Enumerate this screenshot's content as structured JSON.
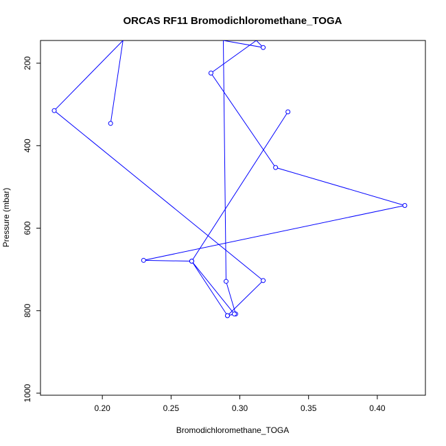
{
  "chart_data": {
    "type": "line",
    "title": "ORCAS RF11 Bromodichloromethane_TOGA",
    "xlabel": "Bromodichloromethane_TOGA",
    "ylabel": "Pressure (mbar)",
    "xlim": [
      0.155,
      0.435
    ],
    "ylim": [
      1005,
      145
    ],
    "y_reversed": true,
    "x_ticks": [
      0.2,
      0.25,
      0.3,
      0.35,
      0.4
    ],
    "x_tick_labels": [
      "0.20",
      "0.25",
      "0.30",
      "0.35",
      "0.40"
    ],
    "y_ticks": [
      200,
      400,
      600,
      800,
      1000
    ],
    "y_tick_labels": [
      "200",
      "400",
      "600",
      "800",
      "1000"
    ],
    "grid": false,
    "marker": "open-circle",
    "color": "#0000ff",
    "series": [
      {
        "x": [
          0.206,
          0.215,
          0.165,
          0.317,
          0.291,
          0.297,
          0.29,
          0.288,
          0.317,
          0.312,
          0.279,
          0.326,
          0.42,
          0.23,
          0.265,
          0.291,
          0.296,
          0.265,
          0.335
        ],
        "y": [
          346,
          145,
          315,
          727,
          812,
          808,
          729,
          145,
          162,
          145,
          224,
          453,
          545,
          678,
          680,
          812,
          808,
          680,
          318
        ]
      }
    ]
  }
}
